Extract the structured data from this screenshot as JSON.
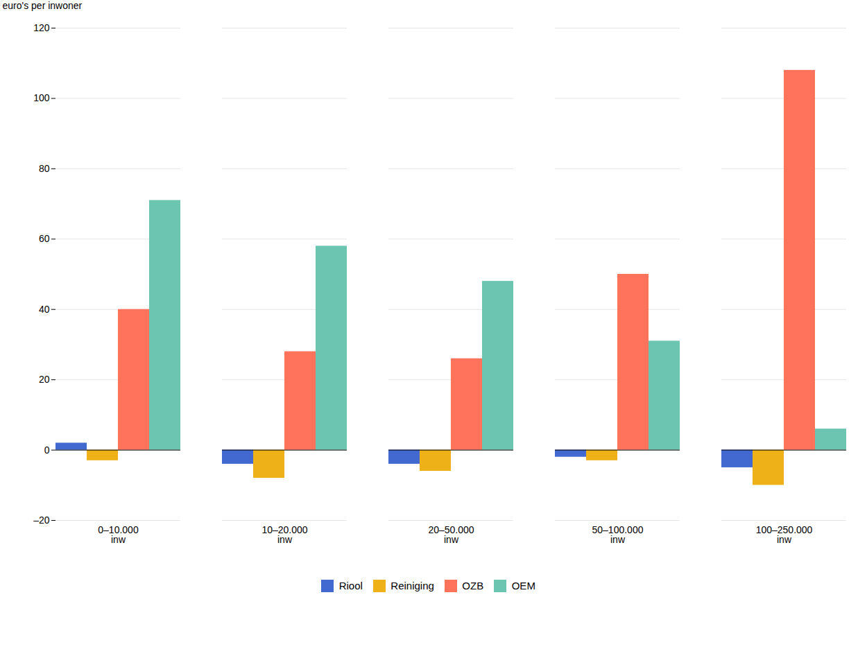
{
  "chart_data": {
    "type": "bar",
    "categories": [
      "0–10.000\ninw",
      "10–20.000\ninw",
      "20–50.000\ninw",
      "50–100.000\ninw",
      "100–250.000\ninw"
    ],
    "series": [
      {
        "name": "Riool",
        "values": [
          2,
          -4,
          -4,
          -2,
          -5
        ]
      },
      {
        "name": "Reiniging",
        "values": [
          -3,
          -8,
          -6,
          -3,
          -10
        ]
      },
      {
        "name": "OZB",
        "values": [
          40,
          28,
          26,
          50,
          108
        ]
      },
      {
        "name": "OEM",
        "values": [
          71,
          58,
          48,
          31,
          6
        ]
      }
    ],
    "ylabel": "euro's per inwoner",
    "ylim": [
      -20,
      120
    ],
    "yticks": [
      {
        "value": -20,
        "label": "–20"
      },
      0,
      20,
      40,
      60,
      80,
      100,
      120
    ],
    "grid": true,
    "legend": "bottom"
  }
}
